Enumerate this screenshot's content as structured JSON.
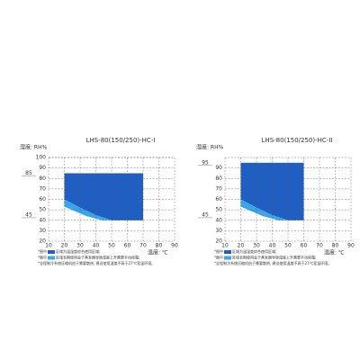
{
  "chart_data": [
    {
      "type": "area",
      "title": "LHS-80(150/250)-HC-I",
      "y_label": "湿度: RH%",
      "x_label": "温度: ℃",
      "xlim": [
        10,
        90
      ],
      "ylim": [
        20,
        100
      ],
      "xticks": [
        10,
        20,
        30,
        40,
        50,
        60,
        70,
        80,
        90
      ],
      "yticks": [
        20,
        30,
        40,
        50,
        60,
        70,
        80,
        90,
        100
      ],
      "extra_yticks": [
        85,
        45
      ],
      "grid": true,
      "series": [
        {
          "color": "#1f5fc4",
          "x": [
            20,
            70,
            70,
            50,
            40,
            30,
            20
          ],
          "y": [
            85,
            85,
            40,
            40,
            45,
            52,
            60
          ]
        },
        {
          "color": "#3aa6ea",
          "x": [
            20,
            30,
            40,
            50,
            44,
            34,
            20
          ],
          "y": [
            60,
            52,
            45,
            40,
            40,
            44,
            53
          ]
        }
      ],
      "notes": [
        {
          "prefix": "*图中",
          "swatch": "#1f5fc4",
          "text": "区域为温湿度综合使用区域;"
        },
        {
          "prefix": "*图中",
          "swatch": "#3aa6ea",
          "text": "区域长期使用会于蒸发器导致湿度上升需要手动除霜;"
        },
        {
          "text": "*全程制冷系统压缩机由于需要散热, 建议使用温度不高于27℃室温环境。"
        }
      ]
    },
    {
      "type": "area",
      "title": "LHS-80(150/250)-HC-II",
      "y_label": "湿度: RH%",
      "x_label": "温度: ℃",
      "xlim": [
        10,
        90
      ],
      "ylim": [
        20,
        100
      ],
      "xticks": [
        10,
        20,
        30,
        40,
        50,
        60,
        70,
        80,
        90
      ],
      "yticks": [
        20,
        30,
        40,
        50,
        60,
        70,
        80,
        90
      ],
      "extra_yticks": [
        95,
        45
      ],
      "grid": true,
      "series": [
        {
          "color": "#1f5fc4",
          "x": [
            20,
            60,
            60,
            50,
            40,
            30,
            20
          ],
          "y": [
            95,
            95,
            40,
            40,
            45,
            52,
            60
          ]
        },
        {
          "color": "#3aa6ea",
          "x": [
            20,
            30,
            40,
            50,
            44,
            34,
            20
          ],
          "y": [
            60,
            52,
            45,
            40,
            40,
            44,
            53
          ]
        }
      ],
      "notes": [
        {
          "prefix": "*图中",
          "swatch": "#1f5fc4",
          "text": "区域为温湿度综合使用区域;"
        },
        {
          "prefix": "*图中",
          "swatch": "#3aa6ea",
          "text": "区域长期使用会于蒸发器导致湿度上升需要手动除霜;"
        },
        {
          "text": "*全程制冷系统压缩机由于需要散热, 建议使用温度不高于27℃室温环境。"
        }
      ]
    }
  ]
}
